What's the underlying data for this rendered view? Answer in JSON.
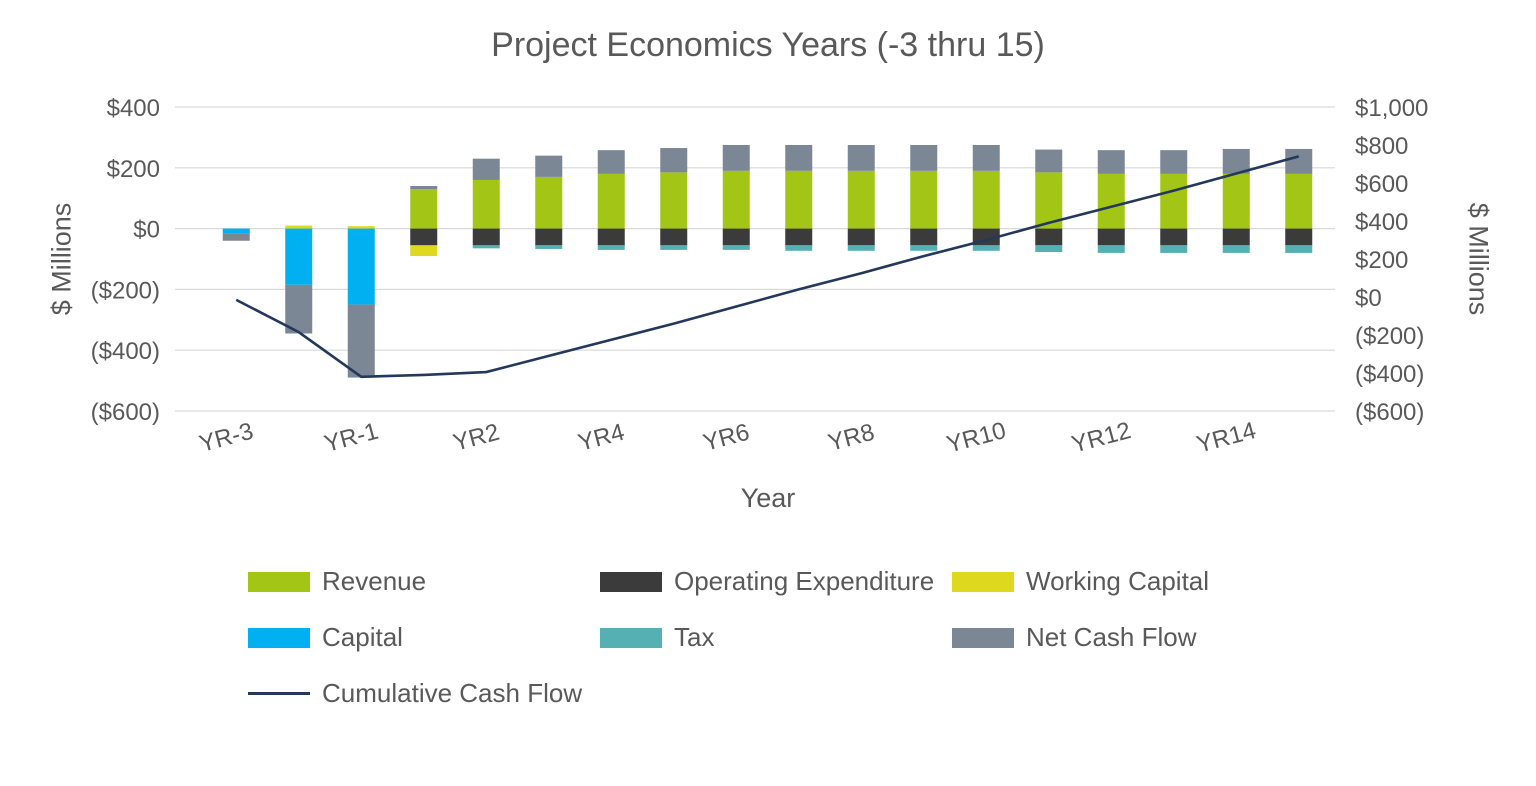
{
  "chart": {
    "title": "Project Economics Years (-3 thru 15)",
    "left_axis_label": "$ Millions",
    "right_axis_label": "$ Millions",
    "x_axis_label": "Year"
  },
  "chart_data": {
    "type": "bar",
    "subtype": "stacked-with-line",
    "title": "Project Economics Years (-3 thru 15)",
    "xlabel": "Year",
    "ylabel_left": "$ Millions",
    "ylabel_right": "$ Millions",
    "grid": true,
    "legend_position": "bottom",
    "categories": [
      "YR-3",
      "YR-2",
      "YR-1",
      "YR1",
      "YR2",
      "YR3",
      "YR4",
      "YR5",
      "YR6",
      "YR7",
      "YR8",
      "YR9",
      "YR10",
      "YR11",
      "YR12",
      "YR13",
      "YR14",
      "YR15"
    ],
    "x_tick_labels": [
      "YR-3",
      "YR-1",
      "YR2",
      "YR4",
      "YR6",
      "YR8",
      "YR10",
      "YR12",
      "YR14"
    ],
    "left_axis": {
      "min": -600,
      "max": 400,
      "ticks": [
        "$400",
        "$200",
        "$0",
        "($200)",
        "($400)",
        "($600)"
      ],
      "tick_values": [
        400,
        200,
        0,
        -200,
        -400,
        -600
      ]
    },
    "right_axis": {
      "min": -600,
      "max": 1000,
      "ticks": [
        "$1,000",
        "$800",
        "$600",
        "$400",
        "$200",
        "$0",
        "($200)",
        "($400)",
        "($600)"
      ],
      "tick_values": [
        1000,
        800,
        600,
        400,
        200,
        0,
        -200,
        -400,
        -600
      ]
    },
    "series": [
      {
        "name": "Revenue",
        "color": "#a2c516",
        "values": [
          0,
          0,
          0,
          130,
          160,
          170,
          180,
          185,
          190,
          190,
          190,
          190,
          190,
          185,
          180,
          180,
          180,
          180
        ]
      },
      {
        "name": "Operating Expenditure",
        "color": "#3b3b3b",
        "values": [
          0,
          0,
          0,
          -55,
          -55,
          -55,
          -55,
          -55,
          -55,
          -55,
          -55,
          -55,
          -55,
          -55,
          -55,
          -55,
          -55,
          -55
        ]
      },
      {
        "name": "Working Capital",
        "color": "#ded81e",
        "values": [
          0,
          10,
          8,
          -35,
          0,
          0,
          0,
          0,
          0,
          0,
          0,
          0,
          0,
          0,
          0,
          0,
          0,
          0
        ]
      },
      {
        "name": "Capital",
        "color": "#00b0f0",
        "values": [
          -15,
          -185,
          -250,
          0,
          0,
          0,
          0,
          0,
          0,
          0,
          0,
          0,
          0,
          0,
          0,
          0,
          0,
          0
        ]
      },
      {
        "name": "Tax",
        "color": "#55b0b4",
        "values": [
          0,
          0,
          0,
          0,
          -10,
          -12,
          -15,
          -15,
          -15,
          -18,
          -18,
          -18,
          -18,
          -22,
          -25,
          -25,
          -25,
          -25
        ]
      },
      {
        "name": "Net Cash Flow",
        "color": "#7b8795",
        "values": [
          -25,
          -160,
          -240,
          10,
          70,
          70,
          78,
          80,
          85,
          85,
          85,
          85,
          85,
          75,
          78,
          78,
          82,
          82
        ]
      }
    ],
    "line_series": {
      "name": "Cumulative Cash Flow",
      "color": "#24385b",
      "axis": "right",
      "values": [
        -15,
        -185,
        -420,
        -410,
        -395,
        -310,
        -225,
        -140,
        -50,
        40,
        125,
        215,
        300,
        390,
        475,
        560,
        650,
        740
      ]
    },
    "colors": {
      "text": "#595959",
      "gridline": "#d9d9d9"
    }
  }
}
